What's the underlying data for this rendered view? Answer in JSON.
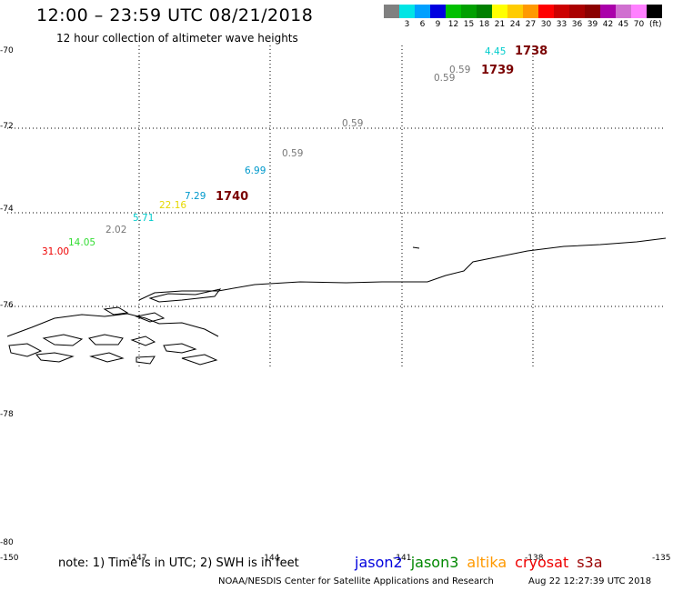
{
  "header": {
    "title": "12:00 – 23:59 UTC 08/21/2018",
    "subtitle": "12 hour collection of altimeter wave heights"
  },
  "legend": {
    "colors": [
      "#808080",
      "#00e5e5",
      "#00a0ff",
      "#0000e0",
      "#00c000",
      "#00a000",
      "#008000",
      "#ffff00",
      "#ffcc00",
      "#ff9900",
      "#ff0000",
      "#cc0000",
      "#aa0000",
      "#8b0000",
      "#aa00aa",
      "#d070d0",
      "#ff80ff",
      "#000000"
    ],
    "labels": [
      "",
      "3",
      "6",
      "9",
      "12",
      "15",
      "18",
      "21",
      "24",
      "27",
      "30",
      "33",
      "36",
      "39",
      "42",
      "45",
      "70"
    ],
    "unit": "(ft)"
  },
  "axes": {
    "lat_labels": [
      "-70",
      "-72",
      "-74",
      "-76",
      "-78",
      "-80"
    ],
    "lon_labels": [
      "-150",
      "-147",
      "-144",
      "-141",
      "-138",
      "-135"
    ]
  },
  "observations": [
    {
      "value": "4.45",
      "color": "#00cccc"
    },
    {
      "value": "0.59",
      "color": "#777777"
    },
    {
      "value": "0.59",
      "color": "#777777"
    },
    {
      "value": "0.59",
      "color": "#777777"
    },
    {
      "value": "0.59",
      "color": "#777777"
    },
    {
      "value": "6.99",
      "color": "#0099cc"
    },
    {
      "value": "7.29",
      "color": "#0099cc"
    },
    {
      "value": "22.16",
      "color": "#e6d800"
    },
    {
      "value": "5.71",
      "color": "#00cccc"
    },
    {
      "value": "2.02",
      "color": "#777777"
    },
    {
      "value": "14.05",
      "color": "#33dd33"
    },
    {
      "value": "31.00",
      "color": "#ee0000"
    }
  ],
  "time_labels": [
    "1738",
    "1739",
    "1740"
  ],
  "note": "note: 1) Time is in UTC; 2) SWH is in feet",
  "satellites": [
    {
      "name": "jason2",
      "color": "#0000dd"
    },
    {
      "name": "jason3",
      "color": "#008800"
    },
    {
      "name": "altika",
      "color": "#ff9900"
    },
    {
      "name": "cryosat",
      "color": "#ee0000"
    },
    {
      "name": "s3a",
      "color": "#990000"
    }
  ],
  "footer": {
    "credit": "NOAA/NESDIS Center for Satellite Applications and Research",
    "generated": "Aug 22 12:27:39 UTC 2018"
  }
}
